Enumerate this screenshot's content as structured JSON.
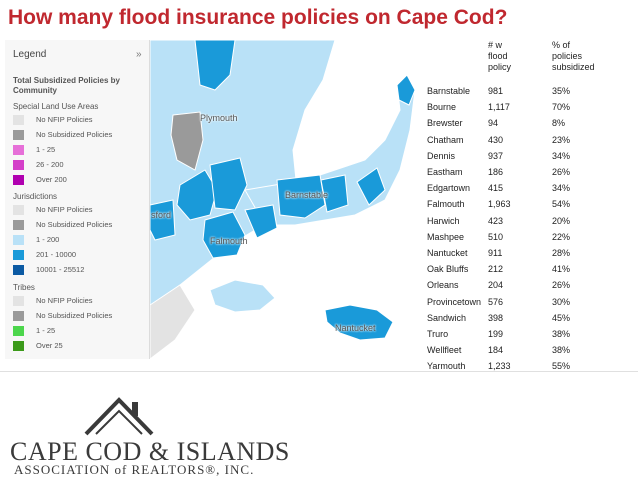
{
  "title": "How many flood insurance policies on Cape Cod?",
  "legend": {
    "title": "Legend",
    "close_icon": "chevron-close-icon",
    "heading": "Total Subsidized Policies by Community",
    "groups": [
      {
        "label": "Special Land Use Areas",
        "items": [
          {
            "label": "No NFIP Policies",
            "color": "#e3e3e3"
          },
          {
            "label": "No Subsidized Policies",
            "color": "#9a9a9a"
          },
          {
            "label": "1 - 25",
            "color": "#e66fd8"
          },
          {
            "label": "26 - 200",
            "color": "#d43fc9"
          },
          {
            "label": "Over 200",
            "color": "#b000b0"
          }
        ]
      },
      {
        "label": "Jurisdictions",
        "items": [
          {
            "label": "No NFIP Policies",
            "color": "#e3e3e3"
          },
          {
            "label": "No Subsidized Policies",
            "color": "#9a9a9a"
          },
          {
            "label": "1 - 200",
            "color": "#b9e1f7"
          },
          {
            "label": "201 - 10000",
            "color": "#1a9ad9"
          },
          {
            "label": "10001 - 25512",
            "color": "#0b5aa3"
          }
        ]
      },
      {
        "label": "Tribes",
        "items": [
          {
            "label": "No NFIP Policies",
            "color": "#e3e3e3"
          },
          {
            "label": "No Subsidized Policies",
            "color": "#9a9a9a"
          },
          {
            "label": "1 - 25",
            "color": "#4cd64c"
          },
          {
            "label": "Over 25",
            "color": "#3c9a1a"
          }
        ]
      }
    ]
  },
  "map": {
    "labels": {
      "plymouth": "Plymouth",
      "barnstable": "Barnstable",
      "falmouth": "Falmouth",
      "nantucket": "Nantucket",
      "partial": "sford"
    },
    "colors": {
      "light": "#b9e1f7",
      "mid": "#1a9ad9",
      "grey": "#9a9a9a",
      "pale": "#e3e3e3"
    }
  },
  "table": {
    "headers": {
      "c2": [
        "# w",
        "flood",
        "policy"
      ],
      "c3": [
        "% of",
        "policies",
        "subsidized"
      ]
    },
    "rows": [
      [
        "Barnstable",
        "981",
        "35%"
      ],
      [
        "Bourne",
        "1,117",
        "70%"
      ],
      [
        "Brewster",
        "94",
        "8%"
      ],
      [
        "Chatham",
        "430",
        "23%"
      ],
      [
        "Dennis",
        "937",
        "34%"
      ],
      [
        "Eastham",
        "186",
        "26%"
      ],
      [
        "Edgartown",
        "415",
        "34%"
      ],
      [
        "Falmouth",
        "1,963",
        "54%"
      ],
      [
        "Harwich",
        "423",
        "20%"
      ],
      [
        "Mashpee",
        "510",
        "22%"
      ],
      [
        "Nantucket",
        "911",
        "28%"
      ],
      [
        "Oak Bluffs",
        "212",
        "41%"
      ],
      [
        "Orleans",
        "204",
        "26%"
      ],
      [
        "Provincetown",
        "576",
        "30%"
      ],
      [
        "Sandwich",
        "398",
        "45%"
      ],
      [
        "Truro",
        "199",
        "38%"
      ],
      [
        "Wellfleet",
        "184",
        "38%"
      ],
      [
        "Yarmouth",
        "1,233",
        "55%"
      ]
    ]
  },
  "logo": {
    "name": "CAPE COD & ISLANDS",
    "subtitle": "ASSOCIATION of REALTORS®, INC.",
    "icon": "house-roof-icon"
  }
}
